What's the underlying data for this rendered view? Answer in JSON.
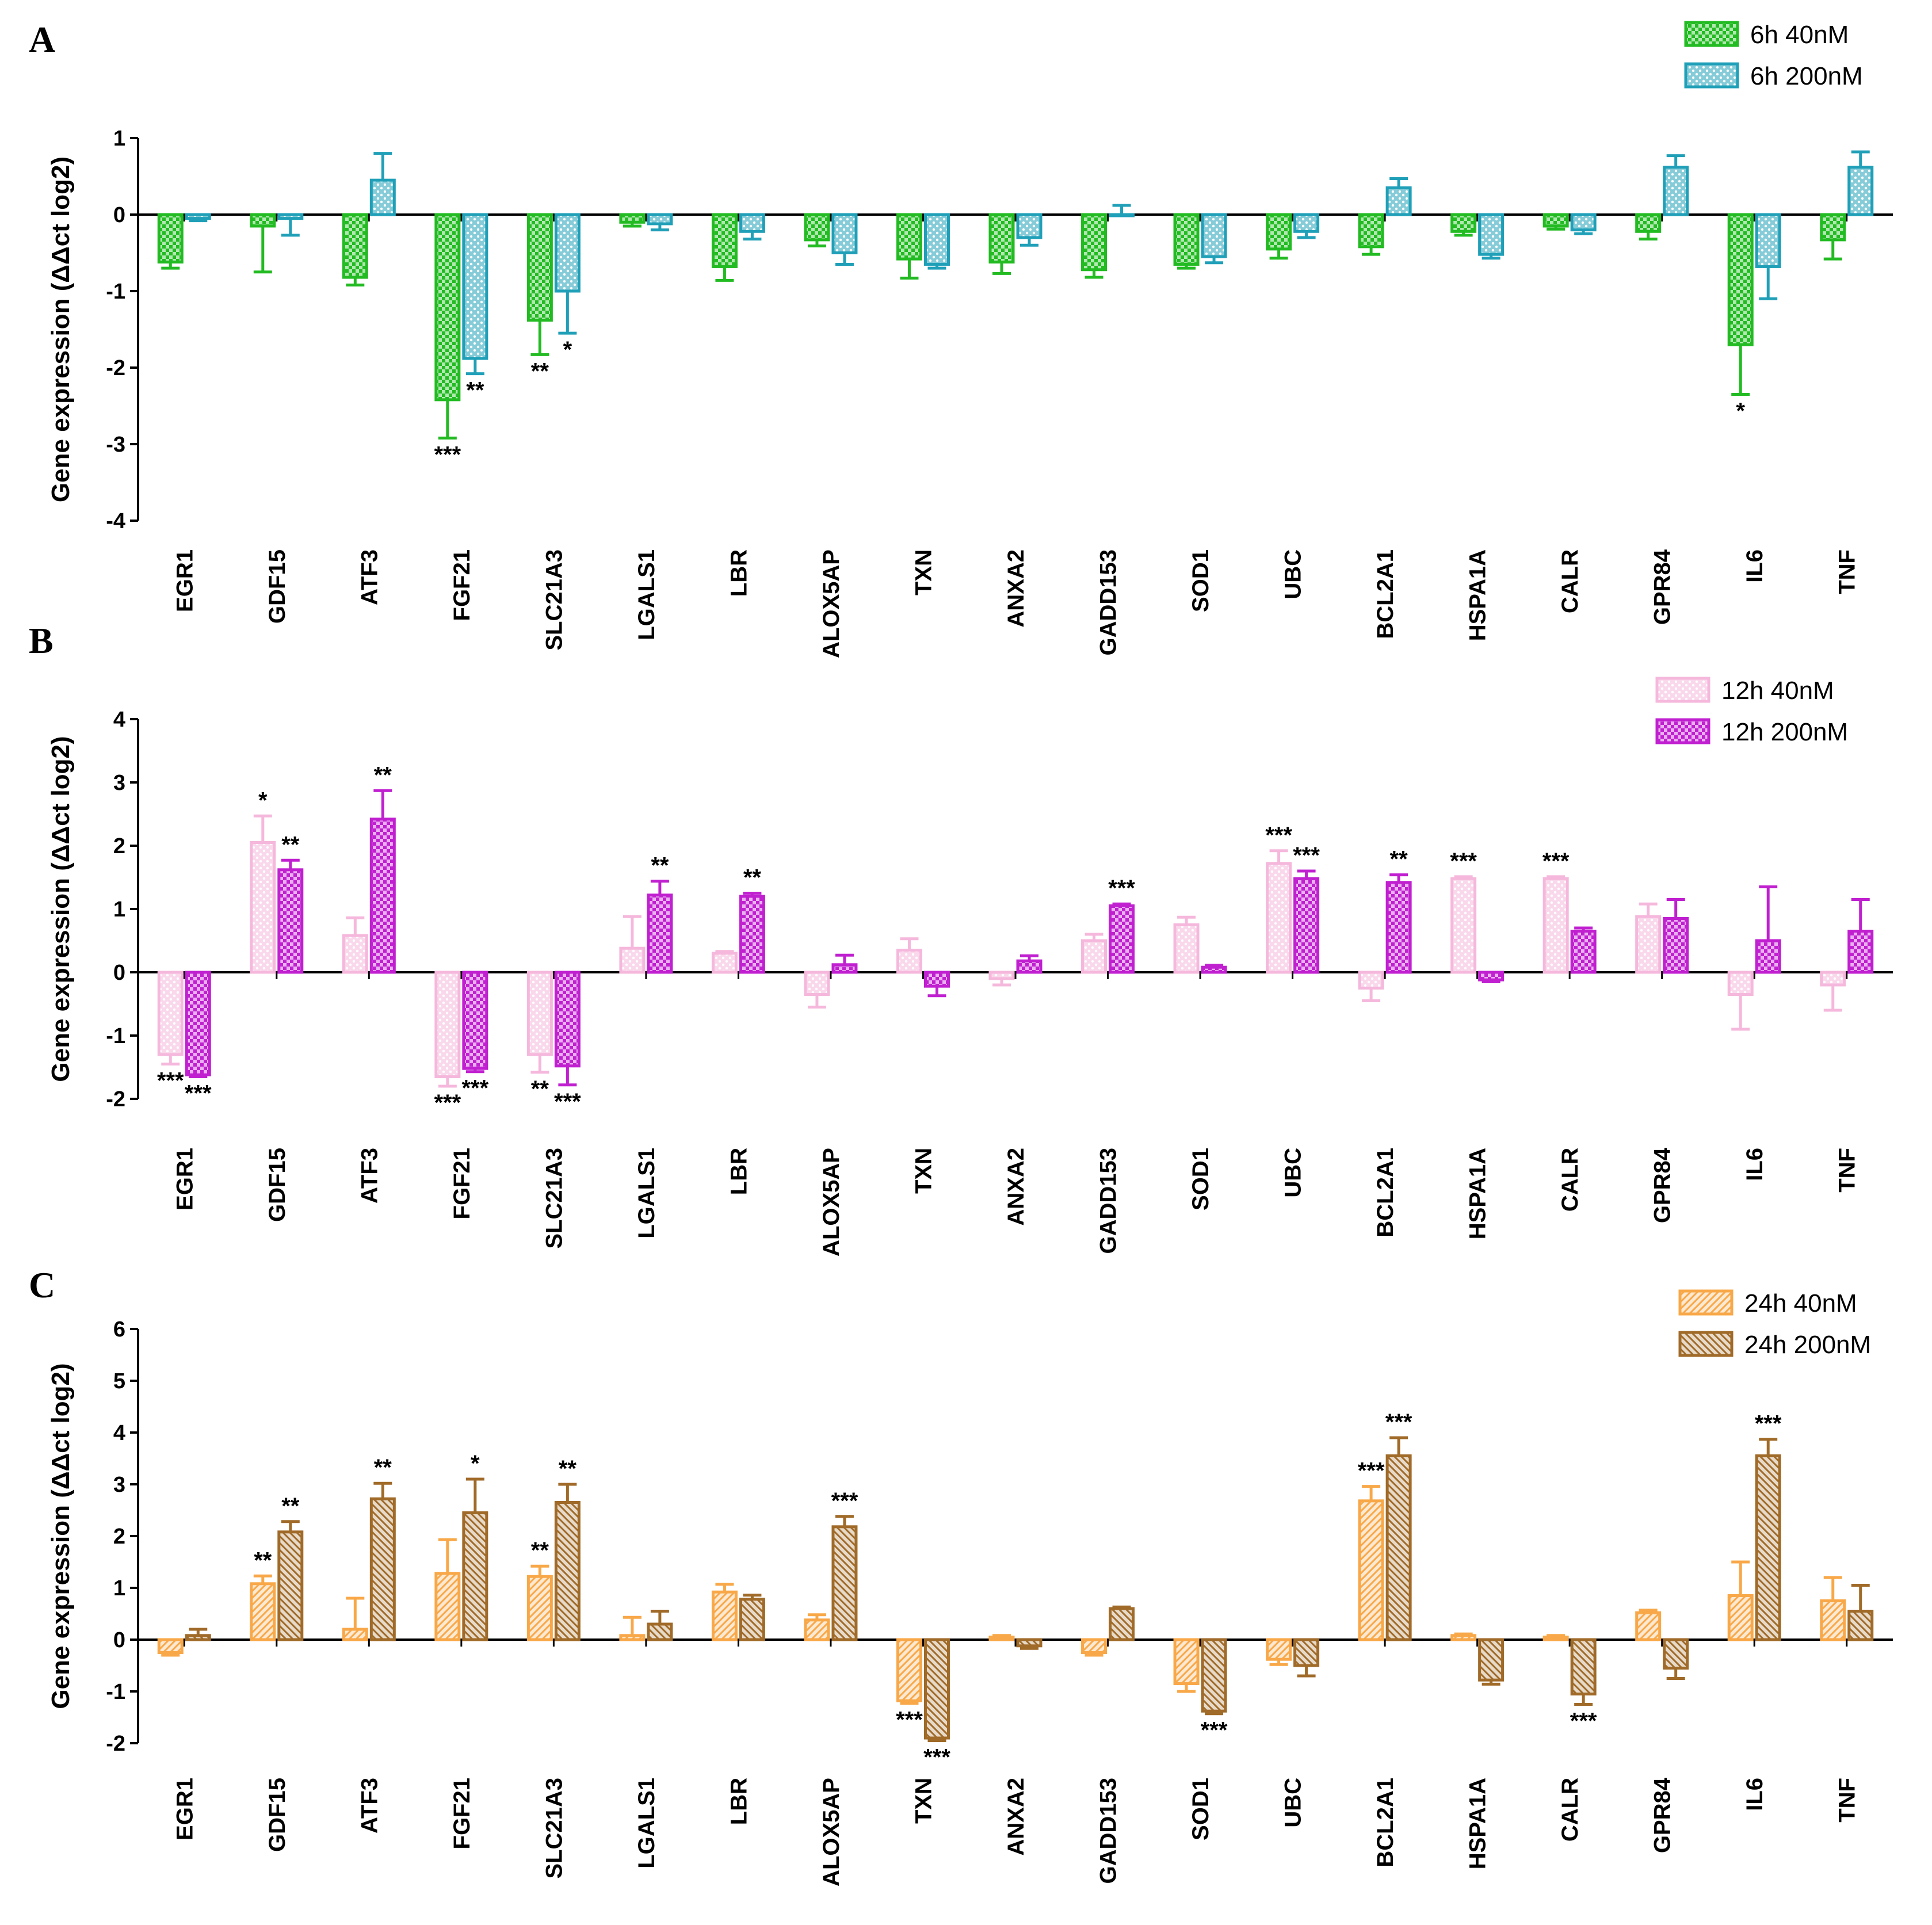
{
  "chart_data": [
    {
      "panel": "A",
      "type": "bar",
      "ylabel": "Gene expression (ΔΔct log2)",
      "ylim": [
        -4,
        1
      ],
      "yticks": [
        1,
        0,
        -1,
        -2,
        -3,
        -4
      ],
      "categories": [
        "EGR1",
        "GDF15",
        "ATF3",
        "FGF21",
        "SLC21A3",
        "LGALS1",
        "LBR",
        "ALOX5AP",
        "TXN",
        "ANXA2",
        "GADD153",
        "SOD1",
        "UBC",
        "BCL2A1",
        "HSPA1A",
        "CALR",
        "GPR84",
        "IL6",
        "TNF"
      ],
      "series": [
        {
          "name": "6h 40nM",
          "color": "#22bb22",
          "pattern": "checker",
          "values": [
            -0.62,
            -0.15,
            -0.82,
            -2.42,
            -1.38,
            -0.1,
            -0.68,
            -0.33,
            -0.58,
            -0.62,
            -0.72,
            -0.65,
            -0.45,
            -0.42,
            -0.22,
            -0.15,
            -0.22,
            -1.7,
            -0.33
          ],
          "errors": [
            0.08,
            0.6,
            0.1,
            0.5,
            0.45,
            0.05,
            0.18,
            0.08,
            0.25,
            0.15,
            0.1,
            0.05,
            0.12,
            0.1,
            0.05,
            0.04,
            0.1,
            0.65,
            0.25
          ],
          "sig": [
            "",
            "",
            "",
            "***",
            "**",
            "",
            "",
            "",
            "",
            "",
            "",
            "",
            "",
            "",
            "",
            "",
            "",
            "*",
            ""
          ]
        },
        {
          "name": "6h 200nM",
          "color": "#20a0b8",
          "pattern": "dots",
          "values": [
            -0.05,
            -0.05,
            0.45,
            -1.88,
            -1.0,
            -0.12,
            -0.22,
            -0.5,
            -0.65,
            -0.3,
            0.0,
            -0.55,
            -0.22,
            0.35,
            -0.52,
            -0.2,
            0.62,
            -0.68,
            0.62
          ],
          "errors": [
            0.03,
            0.22,
            0.35,
            0.2,
            0.55,
            0.08,
            0.1,
            0.15,
            0.05,
            0.1,
            0.12,
            0.08,
            0.08,
            0.12,
            0.05,
            0.05,
            0.15,
            0.42,
            0.2
          ],
          "sig": [
            "",
            "",
            "",
            "**",
            "*",
            "",
            "",
            "",
            "",
            "",
            "",
            "",
            "",
            "",
            "",
            "",
            "",
            "",
            ""
          ]
        }
      ],
      "legend": [
        "6h 40nM",
        "6h 200nM"
      ]
    },
    {
      "panel": "B",
      "type": "bar",
      "ylabel": "Gene expression (ΔΔct log2)",
      "ylim": [
        -2,
        4
      ],
      "yticks": [
        4,
        3,
        2,
        1,
        0,
        -1,
        -2
      ],
      "categories": [
        "EGR1",
        "GDF15",
        "ATF3",
        "FGF21",
        "SLC21A3",
        "LGALS1",
        "LBR",
        "ALOX5AP",
        "TXN",
        "ANXA2",
        "GADD153",
        "SOD1",
        "UBC",
        "BCL2A1",
        "HSPA1A",
        "CALR",
        "GPR84",
        "IL6",
        "TNF"
      ],
      "series": [
        {
          "name": "12h 40nM",
          "color": "#f5b8dc",
          "pattern": "dots",
          "values": [
            -1.3,
            2.05,
            0.58,
            -1.65,
            -1.3,
            0.38,
            0.3,
            -0.35,
            0.35,
            -0.1,
            0.5,
            0.75,
            1.72,
            -0.25,
            1.48,
            1.48,
            0.88,
            -0.35,
            -0.2
          ],
          "errors": [
            0.15,
            0.42,
            0.28,
            0.15,
            0.28,
            0.5,
            0.03,
            0.2,
            0.18,
            0.1,
            0.1,
            0.12,
            0.2,
            0.2,
            0.03,
            0.03,
            0.2,
            0.55,
            0.4
          ],
          "sig": [
            "***",
            "*",
            "",
            "***",
            "**",
            "",
            "",
            "",
            "",
            "",
            "",
            "",
            "***",
            "",
            "***",
            "***",
            "",
            "",
            ""
          ]
        },
        {
          "name": "12h 200nM",
          "color": "#c020d0",
          "pattern": "checker",
          "values": [
            -1.62,
            1.62,
            2.42,
            -1.52,
            -1.48,
            1.22,
            1.2,
            0.12,
            -0.22,
            0.18,
            1.05,
            0.08,
            1.48,
            1.42,
            -0.12,
            0.65,
            0.85,
            0.5,
            0.65
          ],
          "errors": [
            0.03,
            0.15,
            0.45,
            0.05,
            0.3,
            0.22,
            0.05,
            0.15,
            0.15,
            0.08,
            0.03,
            0.03,
            0.12,
            0.12,
            0.03,
            0.05,
            0.3,
            0.85,
            0.5
          ],
          "sig": [
            "***",
            "**",
            "**",
            "***",
            "***",
            "**",
            "**",
            "",
            "",
            "",
            "***",
            "",
            "***",
            "**",
            "",
            "",
            "",
            "",
            ""
          ]
        }
      ],
      "legend": [
        "12h 40nM",
        "12h 200nM"
      ]
    },
    {
      "panel": "C",
      "type": "bar",
      "ylabel": "Gene expression (ΔΔct log2)",
      "ylim": [
        -2,
        6
      ],
      "yticks": [
        6,
        5,
        4,
        3,
        2,
        1,
        0,
        -1,
        -2
      ],
      "categories": [
        "EGR1",
        "GDF15",
        "ATF3",
        "FGF21",
        "SLC21A3",
        "LGALS1",
        "LBR",
        "ALOX5AP",
        "TXN",
        "ANXA2",
        "GADD153",
        "SOD1",
        "UBC",
        "BCL2A1",
        "HSPA1A",
        "CALR",
        "GPR84",
        "IL6",
        "TNF"
      ],
      "series": [
        {
          "name": "24h 40nM",
          "color": "#f8a848",
          "pattern": "hatch-fwd",
          "values": [
            -0.25,
            1.08,
            0.2,
            1.28,
            1.22,
            0.08,
            0.92,
            0.38,
            -1.18,
            0.05,
            -0.25,
            -0.85,
            -0.38,
            2.68,
            0.08,
            0.05,
            0.52,
            0.85,
            0.75
          ],
          "errors": [
            0.05,
            0.15,
            0.6,
            0.65,
            0.2,
            0.35,
            0.15,
            0.1,
            0.05,
            0.03,
            0.05,
            0.15,
            0.1,
            0.28,
            0.03,
            0.03,
            0.05,
            0.65,
            0.45
          ],
          "sig": [
            "",
            "**",
            "",
            "",
            "**",
            "",
            "",
            "",
            "***",
            "",
            "",
            "",
            "",
            "***",
            "",
            "",
            "",
            "",
            ""
          ]
        },
        {
          "name": "24h 200nM",
          "color": "#a06a28",
          "pattern": "hatch-back",
          "values": [
            0.08,
            2.08,
            2.72,
            2.45,
            2.65,
            0.3,
            0.78,
            2.18,
            -1.9,
            -0.12,
            0.6,
            -1.38,
            -0.5,
            3.55,
            -0.78,
            -1.05,
            -0.55,
            3.55,
            0.55
          ],
          "errors": [
            0.12,
            0.2,
            0.3,
            0.65,
            0.35,
            0.25,
            0.08,
            0.2,
            0.05,
            0.05,
            0.03,
            0.05,
            0.2,
            0.35,
            0.08,
            0.2,
            0.2,
            0.32,
            0.5
          ],
          "sig": [
            "",
            "**",
            "**",
            "*",
            "**",
            "",
            "",
            "***",
            "***",
            "",
            "",
            "***",
            "",
            "***",
            "",
            "***",
            "",
            "***",
            ""
          ]
        }
      ],
      "legend": [
        "24h 40nM",
        "24h 200nM"
      ]
    }
  ]
}
